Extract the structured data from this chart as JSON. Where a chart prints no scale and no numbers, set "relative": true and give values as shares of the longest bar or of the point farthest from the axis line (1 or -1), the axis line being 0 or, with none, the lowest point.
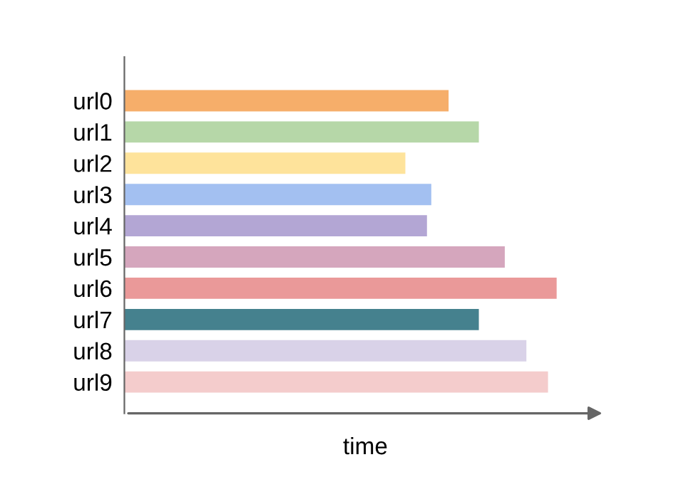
{
  "chart_data": {
    "type": "bar",
    "orientation": "horizontal",
    "relative": true,
    "xlabel": "time",
    "categories": [
      "url0",
      "url1",
      "url2",
      "url3",
      "url4",
      "url5",
      "url6",
      "url7",
      "url8",
      "url9"
    ],
    "values": [
      0.75,
      0.82,
      0.65,
      0.71,
      0.7,
      0.88,
      1,
      0.82,
      0.93,
      0.98
    ],
    "colors": [
      "#f6ae6a",
      "#b6d7a8",
      "#fee39b",
      "#a3c0f1",
      "#b3a6d4",
      "#d5a6bd",
      "#ea9999",
      "#45818e",
      "#d9d2e8",
      "#f4cccc"
    ],
    "grid": false,
    "legend": false
  }
}
